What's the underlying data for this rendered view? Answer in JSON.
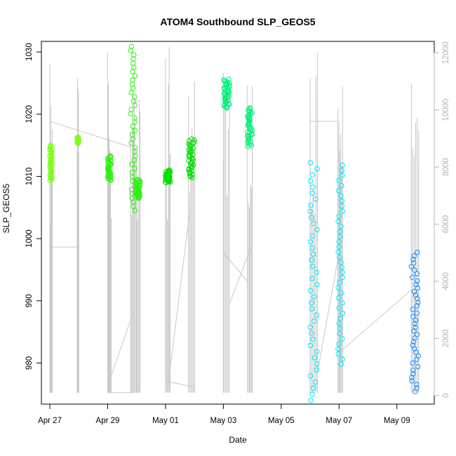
{
  "chart_data": {
    "type": "scatter",
    "title": "ATOM4 Southbound SLP_GEOS5",
    "xlabel": "Date",
    "ylabel": "SLP_GEOS5",
    "x_ticks": [
      "Apr 27",
      "Apr 29",
      "May 01",
      "May 03",
      "May 05",
      "May 07",
      "May 09"
    ],
    "y_ticks": [
      980,
      990,
      1000,
      1010,
      1020,
      1030
    ],
    "y2_ticks": [
      0,
      2000,
      4000,
      6000,
      8000,
      10000,
      12000
    ],
    "xlim": [
      "2016-04-26T17:00",
      "2016-05-10T07:00"
    ],
    "ylim": [
      973.4,
      1031.7
    ],
    "y2lim": [
      -300,
      12400
    ],
    "grid": false,
    "point_colors": {
      "green_light": "#7cff1a",
      "green": "#2df00f",
      "green_bright": "#00e000",
      "green_cyan": "#00f07a",
      "cyan": "#00e5ff",
      "blue": "#1e90ff"
    },
    "secondary_series_color": "#c8c8c8",
    "clusters": [
      {
        "x": [
          "2016-04-27T00:00",
          "2016-04-27T02:00"
        ],
        "y": [
          1009.3,
          1015.0
        ],
        "color": "green_light"
      },
      {
        "x": [
          "2016-04-27T22:40",
          "2016-04-28T00:00"
        ],
        "y": [
          1015.3,
          1016.3
        ],
        "color": "green_light"
      },
      {
        "x": [
          "2016-04-29T00:00",
          "2016-04-29T03:00"
        ],
        "y": [
          1009.4,
          1013.3
        ],
        "color": "green"
      },
      {
        "x": [
          "2016-04-29T19:00",
          "2016-04-29T23:00"
        ],
        "y": [
          1004.5,
          1030.9
        ],
        "color": "green"
      },
      {
        "x": [
          "2016-04-29T23:00",
          "2016-04-30T03:00"
        ],
        "y": [
          1006.5,
          1009.5
        ],
        "color": "green"
      },
      {
        "x": [
          "2016-05-01T00:00",
          "2016-05-01T04:00"
        ],
        "y": [
          1009.0,
          1011.0
        ],
        "color": "green_bright"
      },
      {
        "x": [
          "2016-05-01T19:00",
          "2016-05-02T00:00"
        ],
        "y": [
          1009.8,
          1016.0
        ],
        "color": "green_bright"
      },
      {
        "x": [
          "2016-05-03T00:00",
          "2016-05-03T05:00"
        ],
        "y": [
          1021.0,
          1025.6
        ],
        "color": "green_cyan"
      },
      {
        "x": [
          "2016-05-03T20:00",
          "2016-05-04T00:00"
        ],
        "y": [
          1014.8,
          1021.0
        ],
        "color": "green_cyan"
      },
      {
        "x": [
          "2016-05-06T00:00",
          "2016-05-06T06:00"
        ],
        "y": [
          974.0,
          1012.2
        ],
        "color": "cyan"
      },
      {
        "x": [
          "2016-05-06T23:00",
          "2016-05-07T03:00"
        ],
        "y": [
          979.8,
          1011.8
        ],
        "color": "cyan"
      },
      {
        "x": [
          "2016-05-09T12:00",
          "2016-05-09T18:00"
        ],
        "y": [
          975.4,
          997.8
        ],
        "color": "blue"
      }
    ],
    "secondary_segments": [
      {
        "x": [
          "2016-04-27T00:00",
          "2016-04-27T00:00"
        ],
        "y2": [
          300,
          11600
        ]
      },
      {
        "x": [
          "2016-04-27T00:00",
          "2016-04-28T00:00"
        ],
        "y2": [
          5200,
          5200
        ]
      },
      {
        "x": [
          "2016-04-28T00:00",
          "2016-04-28T00:00"
        ],
        "y2": [
          5200,
          100
        ]
      },
      {
        "x": [
          "2016-04-27T00:00",
          "2016-04-29T19:00"
        ],
        "y2": [
          9600,
          8700
        ]
      },
      {
        "x": [
          "2016-04-29T00:00",
          "2016-04-29T00:00"
        ],
        "y2": [
          100,
          12000
        ]
      },
      {
        "x": [
          "2016-04-29T00:00",
          "2016-04-29T21:00"
        ],
        "y2": [
          100,
          100
        ]
      },
      {
        "x": [
          "2016-04-29T03:00",
          "2016-04-29T22:00"
        ],
        "y2": [
          700,
          3000
        ]
      },
      {
        "x": [
          "2016-04-30T00:00",
          "2016-04-30T00:00"
        ],
        "y2": [
          100,
          7500
        ]
      },
      {
        "x": [
          "2016-05-01T00:00",
          "2016-05-01T00:00"
        ],
        "y2": [
          300,
          11800
        ]
      },
      {
        "x": [
          "2016-05-01T03:00",
          "2016-05-01T03:00"
        ],
        "y2": [
          300,
          12200
        ]
      },
      {
        "x": [
          "2016-05-01T00:00",
          "2016-05-02T00:00"
        ],
        "y2": [
          500,
          300
        ]
      },
      {
        "x": [
          "2016-05-01T04:00",
          "2016-05-01T20:00"
        ],
        "y2": [
          1000,
          6400
        ]
      },
      {
        "x": [
          "2016-05-02T00:00",
          "2016-05-02T00:00"
        ],
        "y2": [
          100,
          11000
        ]
      },
      {
        "x": [
          "2016-05-03T00:00",
          "2016-05-03T00:00"
        ],
        "y2": [
          100,
          11300
        ]
      },
      {
        "x": [
          "2016-05-03T00:00",
          "2016-05-03T20:00"
        ],
        "y2": [
          5000,
          4000
        ]
      },
      {
        "x": [
          "2016-05-03T05:00",
          "2016-05-03T05:00"
        ],
        "y2": [
          100,
          8000
        ]
      },
      {
        "x": [
          "2016-05-03T05:00",
          "2016-05-03T23:00"
        ],
        "y2": [
          3200,
          5200
        ]
      },
      {
        "x": [
          "2016-05-04T00:00",
          "2016-05-04T00:00"
        ],
        "y2": [
          100,
          9800
        ]
      },
      {
        "x": [
          "2016-05-06T00:00",
          "2016-05-06T06:00"
        ],
        "y2": [
          9600,
          9600
        ]
      },
      {
        "x": [
          "2016-05-06T00:00",
          "2016-05-06T00:00"
        ],
        "y2": [
          100,
          10000
        ]
      },
      {
        "x": [
          "2016-05-06T06:00",
          "2016-05-06T06:00"
        ],
        "y2": [
          100,
          12000
        ]
      },
      {
        "x": [
          "2016-05-06T06:00",
          "2016-05-07T00:00"
        ],
        "y2": [
          800,
          5000
        ]
      },
      {
        "x": [
          "2016-05-06T06:00",
          "2016-05-07T00:00"
        ],
        "y2": [
          9600,
          9600
        ]
      },
      {
        "x": [
          "2016-05-07T00:00",
          "2016-05-07T00:00"
        ],
        "y2": [
          100,
          9000
        ]
      },
      {
        "x": [
          "2016-05-07T00:00",
          "2016-05-09T12:00"
        ],
        "y2": [
          1500,
          3700
        ]
      },
      {
        "x": [
          "2016-05-09T12:00",
          "2016-05-09T12:00"
        ],
        "y2": [
          100,
          9000
        ]
      },
      {
        "x": [
          "2016-05-09T18:00",
          "2016-05-09T18:00"
        ],
        "y2": [
          100,
          9300
        ]
      }
    ]
  }
}
